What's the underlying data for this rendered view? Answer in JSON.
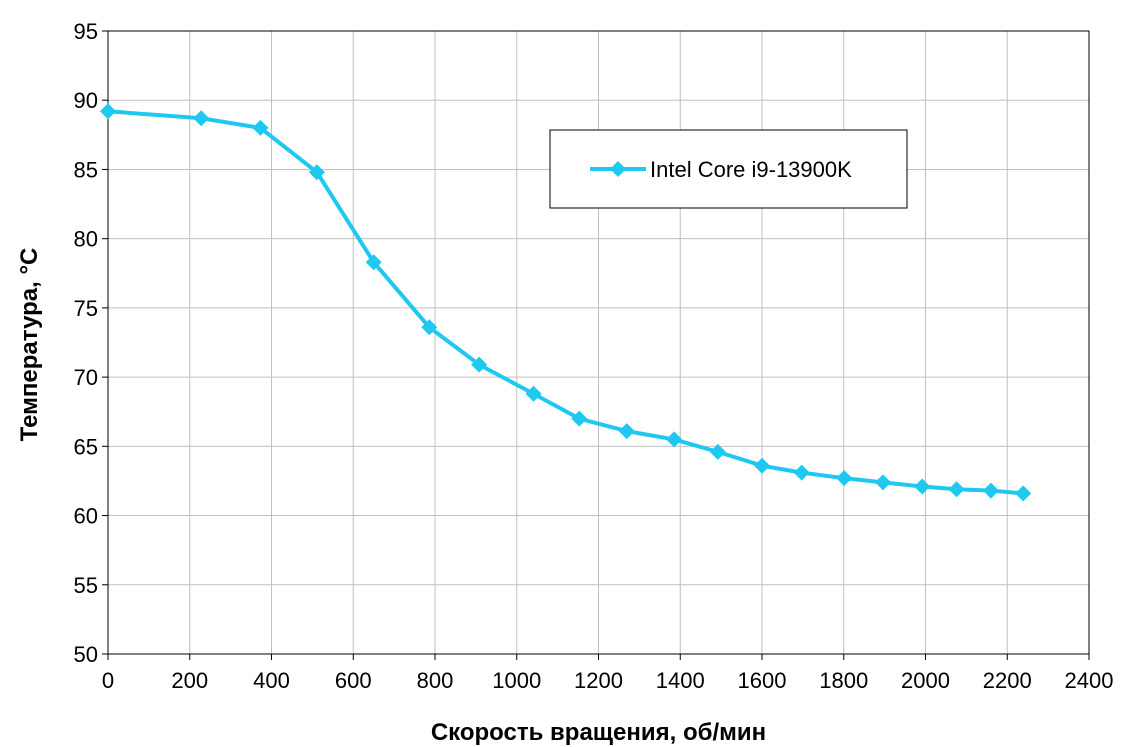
{
  "chart_data": {
    "type": "line",
    "title": "",
    "xlabel": "Скорость вращения, об/мин",
    "ylabel": "Температура, °C",
    "xlim": [
      0,
      2400
    ],
    "ylim": [
      50,
      95
    ],
    "xticks": [
      0,
      200,
      400,
      600,
      800,
      1000,
      1200,
      1400,
      1600,
      1800,
      2000,
      2200,
      2400
    ],
    "yticks": [
      50,
      55,
      60,
      65,
      70,
      75,
      80,
      85,
      90,
      95
    ],
    "grid": true,
    "legend_position": "top-right",
    "series": [
      {
        "name": "Intel Core i9-13900K",
        "color": "#1ec8f0",
        "marker": "diamond",
        "x": [
          0,
          228,
          373,
          511,
          650,
          786,
          908,
          1041,
          1153,
          1269,
          1385,
          1492,
          1600,
          1697,
          1801,
          1896,
          1992,
          2076,
          2160,
          2239
        ],
        "y": [
          89.2,
          88.7,
          88.0,
          84.8,
          78.3,
          73.6,
          70.9,
          68.8,
          67.0,
          66.1,
          65.5,
          64.6,
          63.6,
          63.1,
          62.7,
          62.4,
          62.1,
          61.9,
          61.8,
          61.6
        ]
      }
    ]
  }
}
